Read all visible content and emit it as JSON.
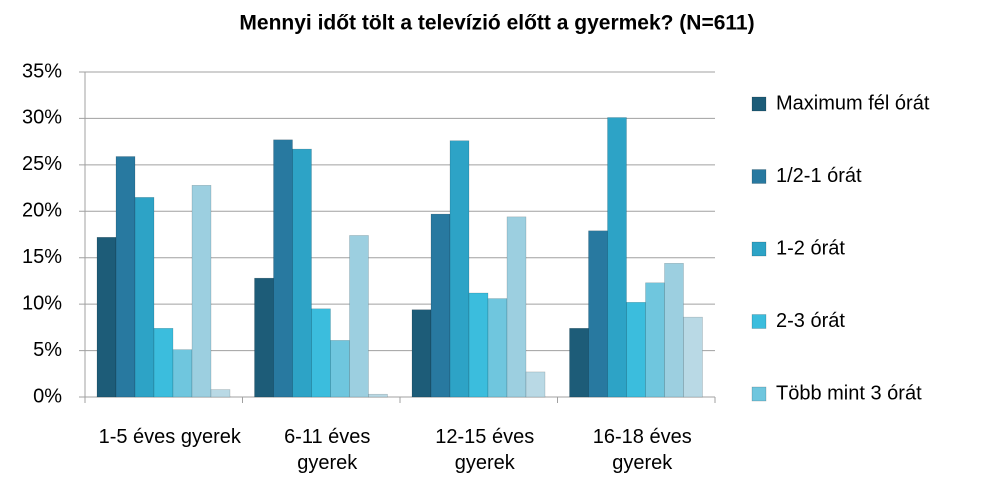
{
  "chart_data": {
    "type": "bar",
    "title": "Mennyi időt tölt a televízió előtt a gyermek? (N=611)",
    "categories": [
      "1-5 éves gyerek",
      "6-11 éves gyerek",
      "12-15 éves gyerek",
      "16-18 éves gyerek"
    ],
    "series": [
      {
        "name": "Maximum fél órát",
        "color": "#1d5c78",
        "values": [
          17.2,
          12.8,
          9.4,
          7.4
        ]
      },
      {
        "name": "1/2-1 órát",
        "color": "#2879a0",
        "values": [
          25.9,
          27.7,
          19.7,
          17.9
        ]
      },
      {
        "name": "1-2 órát",
        "color": "#2da3c6",
        "values": [
          21.5,
          26.7,
          27.6,
          30.1
        ]
      },
      {
        "name": "2-3 órát",
        "color": "#3bbddd",
        "values": [
          7.4,
          9.5,
          11.2,
          10.2
        ]
      },
      {
        "name": "Több mint 3 órát",
        "color": "#6fc6de",
        "values": [
          5.1,
          6.1,
          10.6,
          12.3
        ]
      },
      {
        "name": null,
        "color": "#9ccfe0",
        "values": [
          22.8,
          17.4,
          19.4,
          14.4
        ]
      },
      {
        "name": null,
        "color": "#b9d9e5",
        "values": [
          0.8,
          0.3,
          2.7,
          8.6
        ]
      }
    ],
    "ylim": [
      0,
      35
    ],
    "yticks": [
      {
        "value": 0,
        "label": "0%"
      },
      {
        "value": 5,
        "label": "5%"
      },
      {
        "value": 10,
        "label": "10%"
      },
      {
        "value": 15,
        "label": "15%"
      },
      {
        "value": 20,
        "label": "20%"
      },
      {
        "value": 25,
        "label": "25%"
      },
      {
        "value": 30,
        "label": "30%"
      },
      {
        "value": 35,
        "label": "35%"
      }
    ],
    "grid": true,
    "legend": "right"
  }
}
